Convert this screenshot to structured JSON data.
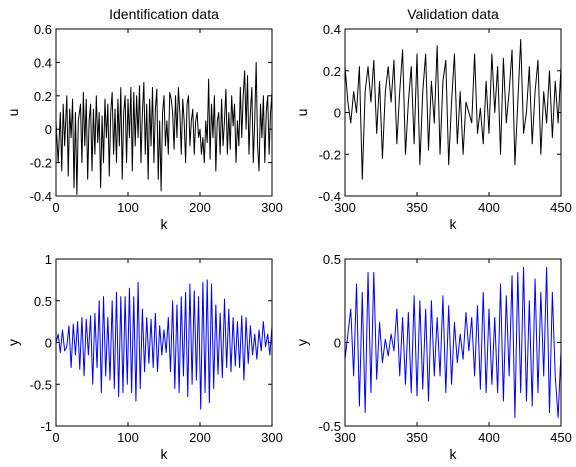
{
  "chart_data": [
    {
      "type": "line",
      "title": "Identification data",
      "xlabel": "k",
      "ylabel": "u",
      "xlim": [
        0,
        300
      ],
      "ylim": [
        -0.4,
        0.6
      ],
      "xticks": [
        "0",
        "100",
        "200",
        "300"
      ],
      "yticks": [
        "-0.4",
        "-0.2",
        "0",
        "0.2",
        "0.4",
        "0.6"
      ],
      "line_color": "#000000",
      "series": [
        {
          "x": [
            0,
            3,
            6,
            8,
            10,
            12,
            15,
            17,
            19,
            21,
            23,
            25,
            27,
            29,
            31,
            34,
            36,
            38,
            40,
            42,
            44,
            46,
            48,
            50,
            52,
            54,
            56,
            58,
            60,
            62,
            64,
            66,
            68,
            70,
            72,
            74,
            76,
            78,
            80,
            82,
            84,
            86,
            88,
            90,
            92,
            94,
            96,
            98,
            100,
            102,
            104,
            106,
            108,
            110,
            112,
            114,
            116,
            118,
            120,
            122,
            124,
            126,
            128,
            130,
            132,
            134,
            136,
            138,
            140,
            142,
            144,
            146,
            148,
            150,
            152,
            154,
            156,
            158,
            160,
            162,
            164,
            166,
            168,
            170,
            172,
            174,
            176,
            178,
            180,
            182,
            184,
            186,
            188,
            190,
            192,
            194,
            196,
            198,
            200,
            202,
            204,
            206,
            208,
            210,
            212,
            214,
            216,
            218,
            220,
            222,
            224,
            226,
            228,
            230,
            232,
            234,
            236,
            238,
            240,
            242,
            244,
            246,
            248,
            250,
            252,
            254,
            256,
            258,
            260,
            262,
            264,
            266,
            268,
            270,
            272,
            274,
            276,
            278,
            280,
            282,
            284,
            286,
            288,
            290,
            292,
            294,
            296,
            298,
            300
          ],
          "y": [
            0.05,
            -0.2,
            0.1,
            -0.25,
            0.15,
            -0.1,
            0.2,
            -0.28,
            0.12,
            -0.05,
            0.18,
            -0.35,
            0.1,
            -0.39,
            0.05,
            0.15,
            -0.2,
            0.22,
            -0.1,
            0.18,
            -0.3,
            0.05,
            0.15,
            -0.25,
            0.12,
            -0.15,
            0.2,
            -0.08,
            0.1,
            -0.35,
            0.08,
            -0.2,
            0.18,
            -0.05,
            0.15,
            -0.28,
            0.1,
            0.22,
            -0.15,
            0.12,
            -0.2,
            0.18,
            -0.1,
            0.25,
            -0.3,
            0.1,
            0.2,
            -0.2,
            0.18,
            -0.05,
            0.25,
            -0.25,
            0.22,
            -0.1,
            0.2,
            -0.05,
            0.26,
            -0.2,
            0.1,
            0.28,
            -0.15,
            0.15,
            -0.3,
            0.18,
            -0.1,
            0.25,
            -0.2,
            0.12,
            0.24,
            -0.3,
            0.05,
            -0.37,
            0.1,
            0.2,
            -0.1,
            0.05,
            -0.15,
            0.22,
            0.18,
            0.1,
            -0.12,
            0.2,
            -0.05,
            0.25,
            0.1,
            -0.15,
            0.18,
            0.05,
            -0.2,
            0.15,
            0.2,
            -0.1,
            0.05,
            0.12,
            -0.15,
            0.05,
            0.1,
            -0.05,
            0.0,
            -0.15,
            -0.05,
            -0.2,
            0.05,
            -0.08,
            0.3,
            -0.18,
            0.15,
            -0.05,
            0.2,
            -0.25,
            0.05,
            0.1,
            -0.15,
            0.18,
            -0.1,
            0.05,
            0.24,
            -0.15,
            0.1,
            -0.12,
            0.2,
            0.02,
            0.15,
            -0.2,
            0.05,
            -0.1,
            0.25,
            -0.05,
            0.2,
            0.35,
            0.0,
            0.32,
            -0.15,
            0.1,
            0.25,
            -0.2,
            0.05,
            0.4,
            -0.1,
            -0.25,
            0.15,
            -0.05,
            0.2,
            -0.2,
            0.1,
            0.2,
            -0.15,
            0.1,
            0.22
          ]
        }
      ]
    },
    {
      "type": "line",
      "title": "Validation data",
      "xlabel": "k",
      "ylabel": "u",
      "xlim": [
        300,
        450
      ],
      "ylim": [
        -0.4,
        0.4
      ],
      "xticks": [
        "300",
        "350",
        "400",
        "450"
      ],
      "yticks": [
        "-0.4",
        "-0.2",
        "0",
        "0.2",
        "0.4"
      ],
      "line_color": "#000000",
      "series": [
        {
          "x": [
            300,
            302,
            304,
            306,
            308,
            310,
            312,
            314,
            316,
            318,
            320,
            322,
            324,
            326,
            328,
            330,
            332,
            334,
            336,
            338,
            340,
            342,
            344,
            346,
            348,
            350,
            352,
            354,
            356,
            358,
            360,
            362,
            364,
            366,
            368,
            370,
            372,
            374,
            376,
            378,
            380,
            382,
            384,
            386,
            388,
            390,
            392,
            394,
            396,
            398,
            400,
            402,
            404,
            406,
            408,
            410,
            412,
            414,
            416,
            418,
            420,
            422,
            424,
            426,
            428,
            430,
            432,
            434,
            436,
            438,
            440,
            442,
            444,
            446,
            448,
            450
          ],
          "y": [
            0.22,
            0.05,
            -0.05,
            0.1,
            0.0,
            0.22,
            -0.32,
            0.1,
            0.22,
            0.05,
            0.25,
            -0.1,
            0.15,
            -0.22,
            0.1,
            0.22,
            0.05,
            0.25,
            -0.15,
            0.1,
            0.3,
            -0.2,
            0.05,
            0.22,
            -0.15,
            0.28,
            -0.25,
            0.1,
            0.28,
            -0.18,
            0.15,
            -0.05,
            0.32,
            -0.2,
            0.15,
            0.25,
            -0.25,
            0.05,
            0.28,
            -0.15,
            0.1,
            -0.2,
            0.05,
            0.0,
            -0.05,
            0.28,
            -0.1,
            0.02,
            -0.15,
            0.15,
            -0.1,
            0.28,
            0.0,
            0.22,
            -0.2,
            0.26,
            -0.05,
            0.1,
            0.3,
            -0.25,
            0.05,
            0.35,
            -0.1,
            0.0,
            0.22,
            -0.15,
            0.1,
            0.25,
            -0.2,
            0.1,
            -0.05,
            0.2,
            -0.12,
            0.15,
            -0.05,
            0.22
          ]
        }
      ]
    },
    {
      "type": "line",
      "title": "",
      "xlabel": "k",
      "ylabel": "y",
      "xlim": [
        0,
        300
      ],
      "ylim": [
        -1,
        1
      ],
      "xticks": [
        "0",
        "100",
        "200",
        "300"
      ],
      "yticks": [
        "-1",
        "-0.5",
        "0",
        "0.5",
        "1"
      ],
      "line_color": "#0000ff",
      "series": [
        {
          "x": [
            0,
            3,
            6,
            9,
            12,
            15,
            18,
            21,
            24,
            27,
            30,
            33,
            36,
            39,
            42,
            45,
            48,
            51,
            54,
            57,
            60,
            63,
            66,
            69,
            72,
            75,
            78,
            81,
            84,
            87,
            90,
            93,
            96,
            99,
            102,
            105,
            108,
            111,
            114,
            117,
            120,
            123,
            126,
            129,
            132,
            135,
            138,
            141,
            144,
            147,
            150,
            153,
            156,
            159,
            162,
            165,
            168,
            171,
            174,
            177,
            180,
            183,
            186,
            189,
            192,
            195,
            198,
            201,
            204,
            207,
            210,
            213,
            216,
            219,
            222,
            225,
            228,
            231,
            234,
            237,
            240,
            243,
            246,
            249,
            252,
            255,
            258,
            261,
            264,
            267,
            270,
            273,
            276,
            279,
            282,
            285,
            288,
            291,
            294,
            297,
            300
          ],
          "y": [
            0.0,
            0.1,
            -0.12,
            0.15,
            -0.1,
            -0.05,
            0.2,
            -0.3,
            0.22,
            -0.15,
            0.25,
            -0.32,
            0.3,
            -0.4,
            0.28,
            -0.15,
            0.32,
            -0.5,
            0.35,
            -0.3,
            0.5,
            -0.6,
            0.55,
            -0.4,
            0.3,
            -0.45,
            0.5,
            -0.55,
            0.6,
            -0.65,
            0.55,
            -0.6,
            0.55,
            -0.5,
            0.65,
            -0.6,
            0.55,
            -0.7,
            0.72,
            -0.55,
            0.4,
            -0.35,
            0.3,
            -0.25,
            0.28,
            -0.3,
            0.35,
            -0.35,
            0.2,
            -0.15,
            0.15,
            -0.12,
            0.3,
            -0.35,
            0.5,
            -0.55,
            0.45,
            -0.6,
            0.55,
            -0.4,
            0.6,
            -0.65,
            0.7,
            -0.5,
            0.62,
            -0.45,
            0.55,
            -0.8,
            0.72,
            -0.6,
            0.75,
            -0.72,
            0.7,
            -0.55,
            0.45,
            -0.38,
            0.35,
            -0.42,
            0.52,
            -0.3,
            0.4,
            -0.35,
            0.3,
            -0.28,
            0.25,
            -0.3,
            0.32,
            -0.45,
            0.3,
            -0.25,
            0.2,
            -0.15,
            0.1,
            -0.2,
            0.15,
            -0.1,
            0.25,
            -0.05,
            0.1,
            -0.15,
            0.2
          ]
        }
      ]
    },
    {
      "type": "line",
      "title": "",
      "xlabel": "k",
      "ylabel": "y",
      "xlim": [
        300,
        450
      ],
      "ylim": [
        -0.5,
        0.5
      ],
      "xticks": [
        "300",
        "350",
        "400",
        "450"
      ],
      "yticks": [
        "-0.5",
        "0",
        "0.5"
      ],
      "line_color": "#0000ff",
      "series": [
        {
          "x": [
            300,
            302,
            304,
            306,
            308,
            310,
            312,
            314,
            316,
            318,
            320,
            322,
            324,
            326,
            328,
            330,
            332,
            334,
            336,
            338,
            340,
            342,
            344,
            346,
            348,
            350,
            352,
            354,
            356,
            358,
            360,
            362,
            364,
            366,
            368,
            370,
            372,
            374,
            376,
            378,
            380,
            382,
            384,
            386,
            388,
            390,
            392,
            394,
            396,
            398,
            400,
            402,
            404,
            406,
            408,
            410,
            412,
            414,
            416,
            418,
            420,
            422,
            424,
            426,
            428,
            430,
            432,
            434,
            436,
            438,
            440,
            442,
            444,
            446,
            448,
            450
          ],
          "y": [
            -0.1,
            0.05,
            0.2,
            -0.2,
            0.35,
            -0.38,
            0.3,
            -0.42,
            0.42,
            -0.3,
            0.42,
            -0.22,
            0.12,
            -0.12,
            0.02,
            -0.08,
            0.05,
            -0.05,
            0.2,
            -0.2,
            0.15,
            -0.25,
            0.18,
            -0.3,
            0.28,
            -0.32,
            0.25,
            -0.28,
            0.2,
            -0.35,
            0.25,
            -0.2,
            0.15,
            -0.2,
            0.28,
            -0.3,
            0.22,
            -0.25,
            0.12,
            -0.12,
            0.05,
            -0.1,
            0.18,
            -0.05,
            0.15,
            -0.2,
            0.22,
            -0.28,
            0.3,
            -0.3,
            0.2,
            -0.25,
            0.15,
            -0.3,
            0.35,
            -0.35,
            0.28,
            -0.2,
            0.4,
            -0.45,
            0.42,
            -0.3,
            0.45,
            -0.35,
            0.25,
            -0.38,
            0.38,
            -0.3,
            0.3,
            -0.2,
            0.45,
            -0.42,
            0.3,
            -0.2,
            -0.45,
            -0.05
          ]
        }
      ]
    }
  ]
}
